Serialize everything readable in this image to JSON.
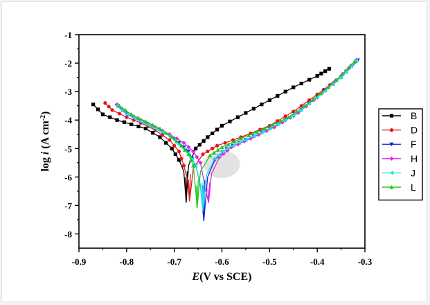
{
  "chart_data": {
    "type": "line",
    "xlabel_italic": "E",
    "xlabel_rest": "(V vs SCE)",
    "ylabel_log": "log ",
    "ylabel_italic": "i",
    "ylabel_unit": " (A cm",
    "ylabel_sup": "-2",
    "ylabel_close": ")",
    "xlim": [
      -0.9,
      -0.3
    ],
    "ylim": [
      -8.5,
      -1
    ],
    "xticks": [
      -0.9,
      -0.8,
      -0.7,
      -0.6,
      -0.5,
      -0.4,
      -0.3
    ],
    "xtick_labels": [
      "-0.9",
      "-0.8",
      "-0.7",
      "-0.6",
      "-0.5",
      "-0.4",
      "-0.3"
    ],
    "yticks": [
      -8,
      -7,
      -6,
      -5,
      -4,
      -3,
      -2,
      -1
    ],
    "ytick_labels": [
      "-8",
      "-7",
      "-6",
      "-5",
      "-4",
      "-3",
      "-2",
      "-1"
    ],
    "legend_position": "right",
    "series": [
      {
        "name": "B",
        "color": "#000000",
        "marker": "square",
        "ecorr": -0.675,
        "icorr_log": -6.9,
        "spike_low": -6.0,
        "cathodic": [
          [
            -0.87,
            -3.45
          ],
          [
            -0.85,
            -3.8
          ],
          [
            -0.82,
            -4.0
          ],
          [
            -0.79,
            -4.15
          ],
          [
            -0.76,
            -4.3
          ],
          [
            -0.73,
            -4.6
          ],
          [
            -0.705,
            -5.0
          ],
          [
            -0.69,
            -5.4
          ],
          [
            -0.68,
            -5.8
          ],
          [
            -0.675,
            -6.9
          ]
        ],
        "anodic": [
          [
            -0.675,
            -6.9
          ],
          [
            -0.67,
            -5.6
          ],
          [
            -0.655,
            -5.0
          ],
          [
            -0.63,
            -4.6
          ],
          [
            -0.6,
            -4.2
          ],
          [
            -0.55,
            -3.75
          ],
          [
            -0.5,
            -3.3
          ],
          [
            -0.45,
            -2.85
          ],
          [
            -0.4,
            -2.45
          ],
          [
            -0.375,
            -2.2
          ]
        ]
      },
      {
        "name": "D",
        "color": "#e8141b",
        "marker": "circle",
        "ecorr": -0.668,
        "icorr_log": -6.85,
        "spike_low": -6.1,
        "cathodic": [
          [
            -0.845,
            -3.4
          ],
          [
            -0.83,
            -3.65
          ],
          [
            -0.8,
            -3.9
          ],
          [
            -0.77,
            -4.1
          ],
          [
            -0.74,
            -4.35
          ],
          [
            -0.71,
            -4.7
          ],
          [
            -0.69,
            -5.1
          ],
          [
            -0.68,
            -5.6
          ],
          [
            -0.672,
            -6.1
          ],
          [
            -0.668,
            -6.85
          ]
        ],
        "anodic": [
          [
            -0.668,
            -6.85
          ],
          [
            -0.66,
            -5.7
          ],
          [
            -0.64,
            -5.2
          ],
          [
            -0.61,
            -4.9
          ],
          [
            -0.56,
            -4.6
          ],
          [
            -0.5,
            -4.2
          ],
          [
            -0.45,
            -3.7
          ],
          [
            -0.4,
            -3.1
          ],
          [
            -0.36,
            -2.6
          ],
          [
            -0.32,
            -1.95
          ]
        ]
      },
      {
        "name": "F",
        "color": "#1a22d8",
        "marker": "triangle-down",
        "ecorr": -0.638,
        "icorr_log": -7.55,
        "spike_low": -6.3,
        "cathodic": [
          [
            -0.82,
            -3.5
          ],
          [
            -0.8,
            -3.8
          ],
          [
            -0.77,
            -4.05
          ],
          [
            -0.74,
            -4.3
          ],
          [
            -0.71,
            -4.55
          ],
          [
            -0.69,
            -4.8
          ],
          [
            -0.67,
            -5.1
          ],
          [
            -0.655,
            -5.6
          ],
          [
            -0.645,
            -6.3
          ],
          [
            -0.638,
            -7.55
          ]
        ],
        "anodic": [
          [
            -0.638,
            -7.55
          ],
          [
            -0.63,
            -6.0
          ],
          [
            -0.615,
            -5.4
          ],
          [
            -0.59,
            -5.0
          ],
          [
            -0.55,
            -4.7
          ],
          [
            -0.5,
            -4.3
          ],
          [
            -0.45,
            -3.85
          ],
          [
            -0.4,
            -3.2
          ],
          [
            -0.35,
            -2.5
          ],
          [
            -0.315,
            -1.9
          ]
        ]
      },
      {
        "name": "H",
        "color": "#e324e3",
        "marker": "diamond",
        "ecorr": -0.628,
        "icorr_log": -6.9,
        "spike_low": -6.4,
        "cathodic": [
          [
            -0.82,
            -3.45
          ],
          [
            -0.8,
            -3.75
          ],
          [
            -0.77,
            -4.0
          ],
          [
            -0.74,
            -4.25
          ],
          [
            -0.71,
            -4.5
          ],
          [
            -0.68,
            -4.8
          ],
          [
            -0.66,
            -5.1
          ],
          [
            -0.645,
            -5.5
          ],
          [
            -0.635,
            -6.4
          ],
          [
            -0.628,
            -6.9
          ]
        ],
        "anodic": [
          [
            -0.628,
            -6.9
          ],
          [
            -0.622,
            -5.9
          ],
          [
            -0.605,
            -5.3
          ],
          [
            -0.58,
            -4.95
          ],
          [
            -0.54,
            -4.65
          ],
          [
            -0.49,
            -4.25
          ],
          [
            -0.44,
            -3.75
          ],
          [
            -0.39,
            -3.05
          ],
          [
            -0.35,
            -2.45
          ],
          [
            -0.318,
            -1.9
          ]
        ]
      },
      {
        "name": "J",
        "color": "#19e2e8",
        "marker": "triangle-left",
        "ecorr": -0.64,
        "icorr_log": -7.2,
        "spike_low": -6.2,
        "cathodic": [
          [
            -0.82,
            -3.5
          ],
          [
            -0.8,
            -3.8
          ],
          [
            -0.77,
            -4.05
          ],
          [
            -0.74,
            -4.3
          ],
          [
            -0.71,
            -4.55
          ],
          [
            -0.69,
            -4.85
          ],
          [
            -0.67,
            -5.15
          ],
          [
            -0.655,
            -5.6
          ],
          [
            -0.646,
            -6.2
          ],
          [
            -0.64,
            -7.2
          ]
        ],
        "anodic": [
          [
            -0.64,
            -7.2
          ],
          [
            -0.632,
            -5.9
          ],
          [
            -0.615,
            -5.35
          ],
          [
            -0.59,
            -5.0
          ],
          [
            -0.55,
            -4.7
          ],
          [
            -0.5,
            -4.3
          ],
          [
            -0.45,
            -3.85
          ],
          [
            -0.4,
            -3.2
          ],
          [
            -0.35,
            -2.5
          ],
          [
            -0.318,
            -1.92
          ]
        ]
      },
      {
        "name": "L",
        "color": "#22c81e",
        "marker": "triangle-up",
        "ecorr": -0.652,
        "icorr_log": -7.1,
        "spike_low": -6.3,
        "cathodic": [
          [
            -0.815,
            -3.5
          ],
          [
            -0.79,
            -3.8
          ],
          [
            -0.76,
            -4.05
          ],
          [
            -0.73,
            -4.3
          ],
          [
            -0.705,
            -4.6
          ],
          [
            -0.685,
            -4.9
          ],
          [
            -0.67,
            -5.2
          ],
          [
            -0.66,
            -5.6
          ],
          [
            -0.656,
            -6.3
          ],
          [
            -0.652,
            -7.1
          ]
        ],
        "anodic": [
          [
            -0.652,
            -7.1
          ],
          [
            -0.645,
            -5.8
          ],
          [
            -0.625,
            -5.25
          ],
          [
            -0.6,
            -4.95
          ],
          [
            -0.56,
            -4.65
          ],
          [
            -0.51,
            -4.3
          ],
          [
            -0.46,
            -3.9
          ],
          [
            -0.41,
            -3.3
          ],
          [
            -0.36,
            -2.6
          ],
          [
            -0.322,
            -1.95
          ]
        ]
      }
    ]
  }
}
